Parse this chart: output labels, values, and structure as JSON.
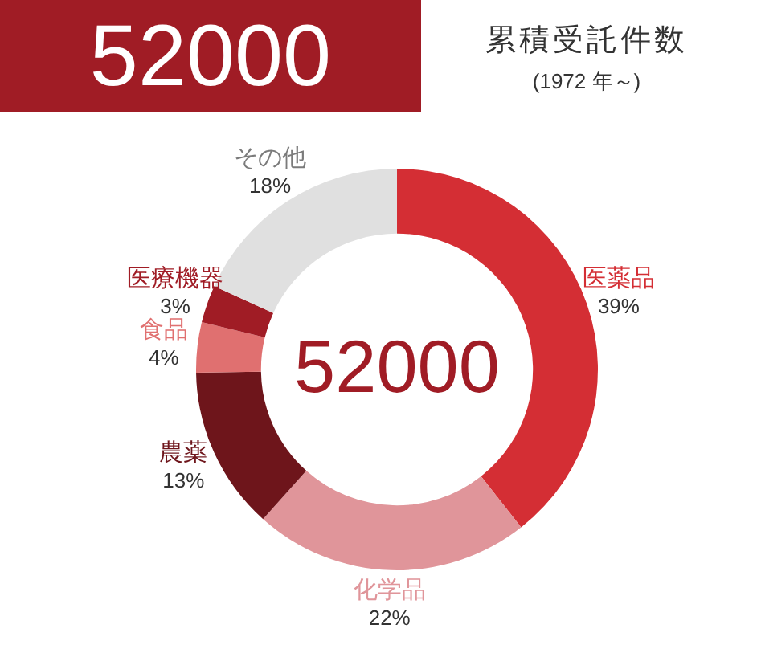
{
  "chart_data": {
    "type": "donut",
    "title": "52000",
    "subtitle": "累積受託件数",
    "annotations": [
      "(1972 年～)",
      "52000"
    ],
    "categories": [
      "医薬品",
      "化学品",
      "農薬",
      "食品",
      "医療機器",
      "その他"
    ],
    "values": [
      39,
      22,
      13,
      4,
      3,
      18
    ],
    "colors": [
      "#d42e34",
      "#e0959a",
      "#6e151b",
      "#e07070",
      "#a01c25",
      "#e0e0e0"
    ],
    "value_labels": [
      "39%",
      "22%",
      "13%",
      "4%",
      "3%",
      "18%"
    ]
  }
}
